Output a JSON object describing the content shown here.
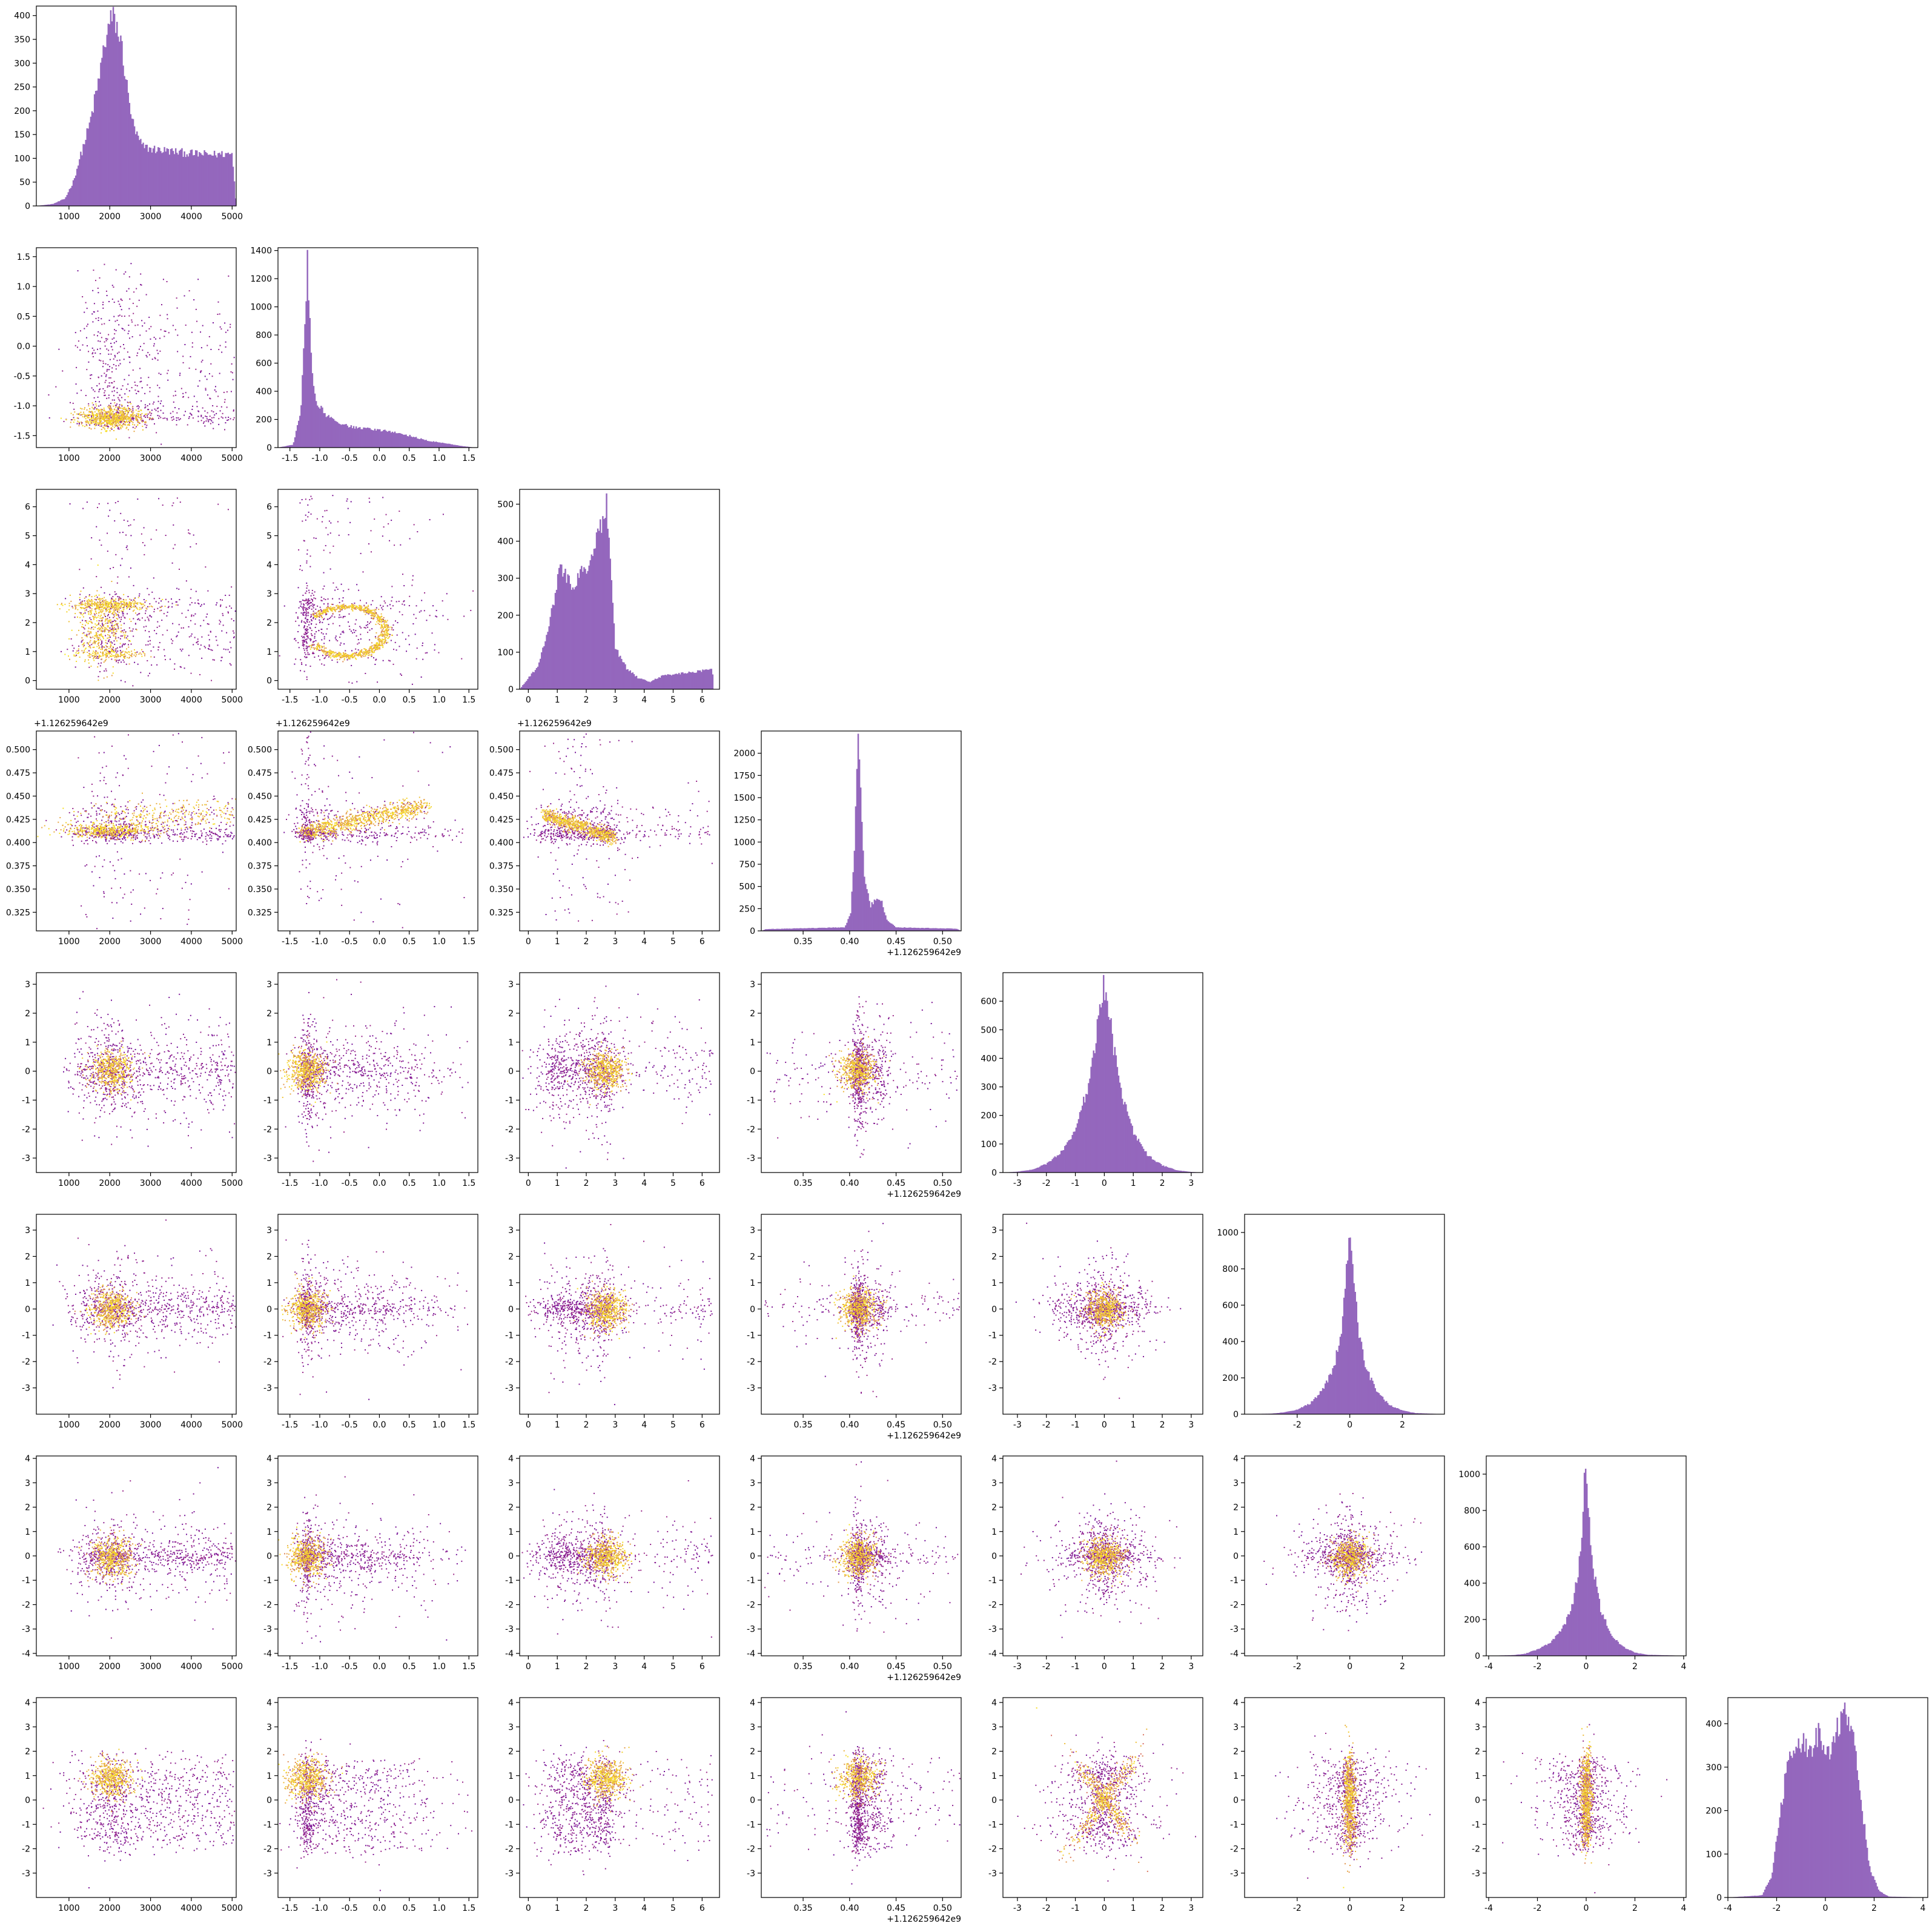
{
  "chart_data": {
    "type": "corner",
    "n_params": 8,
    "colors": {
      "hist_fill": "#9467bd",
      "scatter_low": "#5b02a3",
      "scatter_mid": "#cc4778",
      "scatter_high": "#f9e721",
      "frame": "#000000"
    },
    "axes": [
      {
        "range": [
          200,
          5100
        ],
        "ticks": [
          1000,
          2000,
          3000,
          4000,
          5000
        ],
        "tick_labels": [
          "1000",
          "2000",
          "3000",
          "4000",
          "5000"
        ],
        "offset_label": ""
      },
      {
        "range": [
          -1.7,
          1.65
        ],
        "ticks": [
          -1.5,
          -1.0,
          -0.5,
          0.0,
          0.5,
          1.0,
          1.5
        ],
        "tick_labels": [
          "-1.5",
          "-1.0",
          "-0.5",
          "0.0",
          "0.5",
          "1.0",
          "1.5"
        ],
        "offset_label": ""
      },
      {
        "range": [
          -0.3,
          6.6
        ],
        "ticks": [
          0,
          1,
          2,
          3,
          4,
          5,
          6
        ],
        "tick_labels": [
          "0",
          "1",
          "2",
          "3",
          "4",
          "5",
          "6"
        ],
        "offset_label": ""
      },
      {
        "range": [
          0.305,
          0.52
        ],
        "ticks": [
          0.325,
          0.35,
          0.375,
          0.4,
          0.425,
          0.45,
          0.475,
          0.5
        ],
        "tick_labels": [
          "0.325",
          "0.350",
          "0.375",
          "0.400",
          "0.425",
          "0.450",
          "0.475",
          "0.500"
        ],
        "x_ticks": [
          0.35,
          0.4,
          0.45,
          0.5
        ],
        "x_tick_labels": [
          "0.35",
          "0.40",
          "0.45",
          "0.50"
        ],
        "offset_label": "+1.126259642e9"
      },
      {
        "range": [
          -3.5,
          3.4
        ],
        "ticks": [
          -3,
          -2,
          -1,
          0,
          1,
          2,
          3
        ],
        "tick_labels": [
          "-3",
          "-2",
          "-1",
          "0",
          "1",
          "2",
          "3"
        ],
        "offset_label": ""
      },
      {
        "range": [
          -4.0,
          3.6
        ],
        "ticks": [
          -3,
          -2,
          -1,
          0,
          1,
          2,
          3
        ],
        "tick_labels": [
          "-3",
          "-2",
          "-1",
          "0",
          "1",
          "2",
          "3"
        ],
        "x_ticks": [
          -2,
          0,
          2
        ],
        "x_tick_labels": [
          "-2",
          "0",
          "2"
        ],
        "offset_label": ""
      },
      {
        "range": [
          -4.1,
          4.1
        ],
        "ticks": [
          -4,
          -3,
          -2,
          -1,
          0,
          1,
          2,
          3,
          4
        ],
        "tick_labels": [
          "-4",
          "-3",
          "-2",
          "-1",
          "0",
          "1",
          "2",
          "3",
          "4"
        ],
        "x_ticks": [
          -4,
          -2,
          0,
          2,
          4
        ],
        "x_tick_labels": [
          "-4",
          "-2",
          "0",
          "2",
          "4"
        ],
        "offset_label": ""
      },
      {
        "range": [
          -4.0,
          4.2
        ],
        "ticks": [
          -3,
          -2,
          -1,
          0,
          1,
          2,
          3,
          4
        ],
        "tick_labels": [
          "-3",
          "-2",
          "-1",
          "0",
          "1",
          "2",
          "3",
          "4"
        ],
        "x_ticks": [
          -4,
          -2,
          0,
          2,
          4
        ],
        "x_tick_labels": [
          "-4",
          "-2",
          "0",
          "2",
          "4"
        ],
        "offset_label": ""
      }
    ],
    "histograms": [
      {
        "ylim": [
          0,
          420
        ],
        "yticks": [
          0,
          50,
          100,
          150,
          200,
          250,
          300,
          350,
          400
        ],
        "profile": [
          [
            200,
            0
          ],
          [
            600,
            4
          ],
          [
            900,
            15
          ],
          [
            1100,
            50
          ],
          [
            1300,
            110
          ],
          [
            1500,
            170
          ],
          [
            1700,
            250
          ],
          [
            1850,
            330
          ],
          [
            1950,
            370
          ],
          [
            2050,
            395
          ],
          [
            2150,
            385
          ],
          [
            2300,
            330
          ],
          [
            2450,
            230
          ],
          [
            2600,
            160
          ],
          [
            2800,
            125
          ],
          [
            3000,
            120
          ],
          [
            3500,
            115
          ],
          [
            4000,
            110
          ],
          [
            4500,
            108
          ],
          [
            5000,
            110
          ],
          [
            5100,
            0
          ]
        ]
      },
      {
        "ylim": [
          0,
          1420
        ],
        "yticks": [
          0,
          200,
          400,
          600,
          800,
          1000,
          1200,
          1400
        ],
        "profile": [
          [
            -1.7,
            0
          ],
          [
            -1.45,
            20
          ],
          [
            -1.32,
            250
          ],
          [
            -1.25,
            900
          ],
          [
            -1.21,
            1330
          ],
          [
            -1.17,
            900
          ],
          [
            -1.12,
            500
          ],
          [
            -1.05,
            320
          ],
          [
            -0.9,
            230
          ],
          [
            -0.7,
            170
          ],
          [
            -0.4,
            140
          ],
          [
            -0.1,
            130
          ],
          [
            0.2,
            115
          ],
          [
            0.5,
            85
          ],
          [
            0.8,
            50
          ],
          [
            1.1,
            30
          ],
          [
            1.4,
            10
          ],
          [
            1.6,
            0
          ]
        ]
      },
      {
        "ylim": [
          0,
          540
        ],
        "yticks": [
          0,
          100,
          200,
          300,
          400,
          500
        ],
        "profile": [
          [
            -0.3,
            0
          ],
          [
            0,
            30
          ],
          [
            0.3,
            60
          ],
          [
            0.6,
            130
          ],
          [
            0.9,
            250
          ],
          [
            1.1,
            325
          ],
          [
            1.3,
            300
          ],
          [
            1.6,
            280
          ],
          [
            1.9,
            320
          ],
          [
            2.2,
            370
          ],
          [
            2.5,
            440
          ],
          [
            2.7,
            505
          ],
          [
            2.85,
            300
          ],
          [
            3.0,
            110
          ],
          [
            3.4,
            55
          ],
          [
            3.8,
            30
          ],
          [
            4.2,
            20
          ],
          [
            4.6,
            35
          ],
          [
            5.0,
            40
          ],
          [
            5.5,
            45
          ],
          [
            6.0,
            50
          ],
          [
            6.35,
            55
          ],
          [
            6.4,
            0
          ]
        ]
      },
      {
        "ylim": [
          0,
          2250
        ],
        "yticks": [
          0,
          250,
          500,
          750,
          1000,
          1250,
          1500,
          1750,
          2000
        ],
        "profile": [
          [
            0.305,
            0
          ],
          [
            0.31,
            20
          ],
          [
            0.395,
            40
          ],
          [
            0.401,
            200
          ],
          [
            0.405,
            900
          ],
          [
            0.409,
            2100
          ],
          [
            0.412,
            1500
          ],
          [
            0.416,
            600
          ],
          [
            0.422,
            280
          ],
          [
            0.428,
            350
          ],
          [
            0.434,
            350
          ],
          [
            0.44,
            120
          ],
          [
            0.45,
            40
          ],
          [
            0.515,
            25
          ],
          [
            0.52,
            0
          ]
        ]
      },
      {
        "ylim": [
          0,
          700
        ],
        "yticks": [
          0,
          100,
          200,
          300,
          400,
          500,
          600
        ],
        "profile": [
          [
            -3.5,
            0
          ],
          [
            -3,
            3
          ],
          [
            -2.5,
            10
          ],
          [
            -2,
            30
          ],
          [
            -1.5,
            70
          ],
          [
            -1,
            150
          ],
          [
            -0.6,
            290
          ],
          [
            -0.3,
            470
          ],
          [
            -0.1,
            620
          ],
          [
            0,
            650
          ],
          [
            0.1,
            600
          ],
          [
            0.3,
            450
          ],
          [
            0.6,
            270
          ],
          [
            1,
            140
          ],
          [
            1.5,
            60
          ],
          [
            2,
            25
          ],
          [
            2.5,
            8
          ],
          [
            3,
            2
          ],
          [
            3.4,
            0
          ]
        ]
      },
      {
        "ylim": [
          0,
          1100
        ],
        "yticks": [
          0,
          200,
          400,
          600,
          800,
          1000
        ],
        "profile": [
          [
            -4,
            0
          ],
          [
            -3,
            3
          ],
          [
            -2.5,
            10
          ],
          [
            -2,
            25
          ],
          [
            -1.5,
            60
          ],
          [
            -1,
            140
          ],
          [
            -0.6,
            260
          ],
          [
            -0.3,
            480
          ],
          [
            -0.15,
            750
          ],
          [
            0,
            1050
          ],
          [
            0.15,
            780
          ],
          [
            0.3,
            480
          ],
          [
            0.6,
            260
          ],
          [
            1,
            130
          ],
          [
            1.5,
            50
          ],
          [
            2,
            20
          ],
          [
            2.5,
            6
          ],
          [
            3.6,
            0
          ]
        ]
      },
      {
        "ylim": [
          0,
          1100
        ],
        "yticks": [
          0,
          200,
          400,
          600,
          800,
          1000
        ],
        "profile": [
          [
            -4.1,
            0
          ],
          [
            -3,
            4
          ],
          [
            -2.5,
            12
          ],
          [
            -2,
            35
          ],
          [
            -1.5,
            70
          ],
          [
            -1,
            140
          ],
          [
            -0.6,
            260
          ],
          [
            -0.3,
            480
          ],
          [
            -0.15,
            740
          ],
          [
            -0.05,
            1070
          ],
          [
            0.1,
            760
          ],
          [
            0.3,
            480
          ],
          [
            0.6,
            250
          ],
          [
            1,
            120
          ],
          [
            1.5,
            50
          ],
          [
            2,
            18
          ],
          [
            2.5,
            6
          ],
          [
            4.1,
            0
          ]
        ]
      },
      {
        "ylim": [
          0,
          460
        ],
        "yticks": [
          0,
          100,
          200,
          300,
          400
        ],
        "profile": [
          [
            -4,
            0
          ],
          [
            -2.6,
            5
          ],
          [
            -2.2,
            50
          ],
          [
            -1.9,
            180
          ],
          [
            -1.6,
            290
          ],
          [
            -1.3,
            340
          ],
          [
            -1,
            360
          ],
          [
            -0.6,
            330
          ],
          [
            -0.3,
            380
          ],
          [
            0,
            320
          ],
          [
            0.3,
            360
          ],
          [
            0.6,
            400
          ],
          [
            0.9,
            430
          ],
          [
            1.2,
            350
          ],
          [
            1.5,
            210
          ],
          [
            1.8,
            70
          ],
          [
            2.2,
            15
          ],
          [
            2.6,
            2
          ],
          [
            4.2,
            0
          ]
        ]
      }
    ],
    "scatter_structures": [
      {
        "row": 1,
        "col": 0,
        "bg": "uniform_triangle_x",
        "clusters": [
          {
            "cx": 2000,
            "cy": -1.2,
            "sx": 380,
            "sy": 0.09,
            "w": 0.45
          }
        ]
      },
      {
        "row": 2,
        "col": 0,
        "bg": "uniform",
        "clusters": [
          {
            "cx": 2000,
            "cy": 2.6,
            "sx": 500,
            "sy": 0.12,
            "w": 0.25
          },
          {
            "cx": 1800,
            "cy": 1.7,
            "sx": 300,
            "sy": 0.6,
            "w": 0.25
          },
          {
            "cx": 2000,
            "cy": 0.9,
            "sx": 450,
            "sy": 0.08,
            "w": 0.1
          }
        ]
      },
      {
        "row": 2,
        "col": 1,
        "bg": "uniform",
        "ring": {
          "cx": -0.55,
          "cy": 1.7,
          "rx": 0.65,
          "ry": 0.85,
          "open": "right",
          "w": 0.55
        }
      },
      {
        "row": 3,
        "col": 0,
        "bg": "uniform",
        "clusters": [
          {
            "cx": 2000,
            "cy": 0.413,
            "sx": 600,
            "sy": 0.004,
            "w": 0.3
          },
          {
            "cx": 3500,
            "cy": 0.43,
            "sx": 1200,
            "sy": 0.008,
            "w": 0.2
          }
        ]
      },
      {
        "row": 3,
        "col": 1,
        "bg": "uniform",
        "band": {
          "x0": -1.3,
          "y0": 0.41,
          "x1": 0.8,
          "y1": 0.44,
          "width": 0.012,
          "w": 0.55
        }
      },
      {
        "row": 3,
        "col": 2,
        "bg": "uniform",
        "band": {
          "x0": 0.5,
          "y0": 0.43,
          "x1": 3.0,
          "y1": 0.405,
          "width": 0.01,
          "w": 0.5
        }
      },
      {
        "row": 7,
        "col": 4,
        "bg": "gauss",
        "xshape": true
      },
      {
        "row": 7,
        "col": 5,
        "bg": "gauss",
        "vertical_bar": true
      },
      {
        "row": 7,
        "col": 6,
        "bg": "gauss",
        "vertical_bar": true
      }
    ]
  }
}
